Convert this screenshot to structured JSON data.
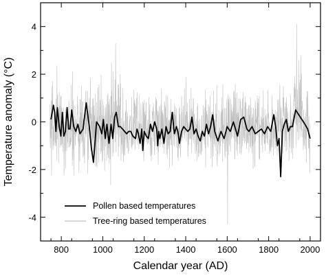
{
  "chart_data": {
    "type": "line",
    "title": "",
    "xlabel": "Calendar year (AD)",
    "ylabel": "Temperature anomaly (°C)",
    "xlim": [
      700,
      2050
    ],
    "ylim": [
      -5,
      5
    ],
    "x_ticks": [
      800,
      1000,
      1200,
      1400,
      1600,
      1800,
      2000
    ],
    "y_ticks": [
      -4,
      -2,
      0,
      2,
      4
    ],
    "grid": false,
    "legend_position": "bottom-left",
    "series": [
      {
        "name": "Tree-ring based temperatures",
        "color": "#c0c0c0",
        "resolution": "annual",
        "x_range": [
          745,
          2000
        ],
        "approx_range": [
          -4.3,
          4.1
        ],
        "peaks": [
          {
            "x": 1062,
            "y": 3.3
          },
          {
            "x": 1935,
            "y": 4.1
          },
          {
            "x": 1602,
            "y": -4.3
          }
        ]
      },
      {
        "name": "Pollen based temperatures",
        "color": "#000000",
        "x": [
          750,
          762,
          768,
          774,
          781,
          790,
          798,
          805,
          812,
          820,
          828,
          835,
          842,
          850,
          860,
          870,
          880,
          890,
          905,
          920,
          935,
          945,
          955,
          970,
          985,
          995,
          1003,
          1012,
          1020,
          1030,
          1040,
          1048,
          1057,
          1065,
          1075,
          1085,
          1095,
          1105,
          1115,
          1125,
          1135,
          1145,
          1158,
          1165,
          1172,
          1180,
          1188,
          1193,
          1200,
          1210,
          1220,
          1230,
          1240,
          1250,
          1260,
          1265,
          1270,
          1275,
          1285,
          1295,
          1305,
          1315,
          1325,
          1335,
          1345,
          1355,
          1362,
          1370,
          1380,
          1390,
          1400,
          1410,
          1420,
          1430,
          1440,
          1450,
          1460,
          1470,
          1480,
          1490,
          1500,
          1510,
          1520,
          1530,
          1540,
          1555,
          1570,
          1585,
          1600,
          1615,
          1630,
          1650,
          1665,
          1680,
          1695,
          1705,
          1720,
          1735,
          1750,
          1765,
          1780,
          1795,
          1810,
          1825,
          1835,
          1842,
          1850,
          1858,
          1866,
          1875,
          1885,
          1895,
          1905,
          1915,
          1930,
          1945,
          1960,
          1975,
          1988,
          2000
        ],
        "values": [
          0.1,
          0.7,
          0.4,
          -0.4,
          0.6,
          -0.2,
          -0.6,
          0.4,
          -0.6,
          -0.4,
          0.6,
          -0.3,
          -0.3,
          0.5,
          -0.2,
          -0.4,
          -0.1,
          -0.5,
          -0.3,
          0.8,
          -0.2,
          -1.1,
          -1.7,
          0.0,
          -0.2,
          -0.5,
          0.1,
          -0.7,
          -0.1,
          -0.9,
          -0.1,
          -0.7,
          0.2,
          0.4,
          -0.2,
          -0.2,
          -0.3,
          -0.4,
          -0.5,
          -0.4,
          -0.4,
          -0.6,
          -0.7,
          -0.3,
          -0.5,
          -0.9,
          -0.3,
          -1.2,
          -0.4,
          -0.6,
          -0.7,
          -0.1,
          -0.4,
          0.0,
          -0.3,
          -1.0,
          -0.4,
          -0.7,
          -0.3,
          -0.9,
          -0.2,
          -0.5,
          -0.4,
          0.4,
          -0.5,
          -0.2,
          -0.4,
          -0.9,
          -0.4,
          -0.2,
          -0.3,
          -0.4,
          -0.3,
          0.2,
          -0.5,
          -0.3,
          -0.6,
          -0.8,
          -0.4,
          -0.6,
          -0.1,
          -0.5,
          -0.2,
          0.3,
          -0.4,
          -0.8,
          -0.4,
          -0.7,
          -0.2,
          -0.4,
          0.0,
          -0.6,
          0.1,
          0.2,
          -0.3,
          -0.4,
          -0.2,
          -0.5,
          -0.4,
          -0.3,
          -0.5,
          -0.2,
          -0.4,
          0.3,
          -0.3,
          -1.0,
          -0.7,
          -2.3,
          -0.4,
          -0.1,
          0.1,
          -0.4,
          -0.2,
          -0.2,
          0.5,
          0.3,
          0.1,
          -0.1,
          -0.3,
          -0.7
        ]
      }
    ]
  }
}
